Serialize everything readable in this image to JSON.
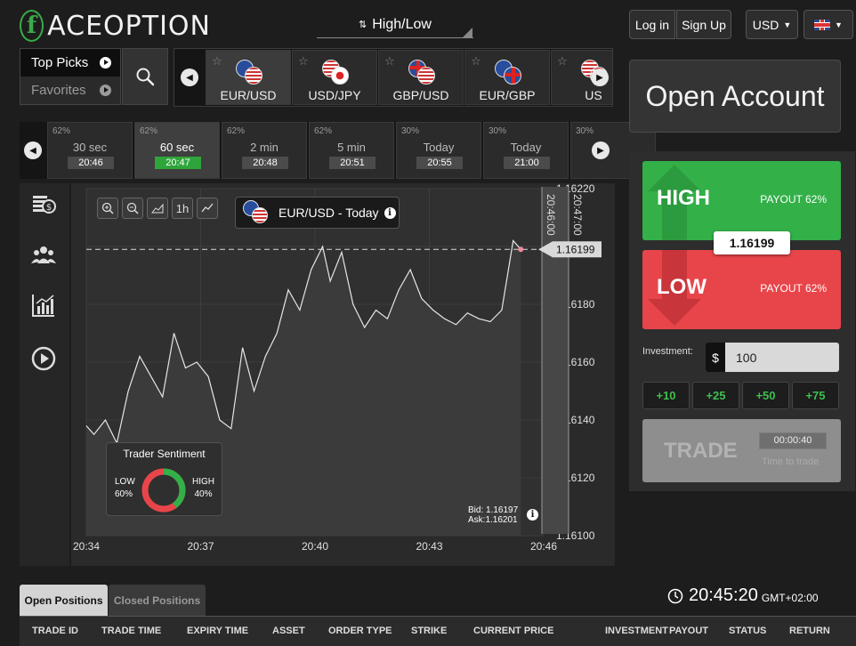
{
  "header": {
    "brand": "ACEOPTION",
    "brand_letter": "f",
    "mode": "High/Low",
    "login": "Log in",
    "signup": "Sign Up",
    "currency": "USD"
  },
  "picks": {
    "items": [
      {
        "label": "Top Picks",
        "active": true
      },
      {
        "label": "Favorites",
        "active": false
      }
    ]
  },
  "assets": [
    {
      "name": "EUR/USD",
      "flags": [
        "eu",
        "us"
      ],
      "selected": true
    },
    {
      "name": "USD/JPY",
      "flags": [
        "us",
        "jp"
      ],
      "selected": false
    },
    {
      "name": "GBP/USD",
      "flags": [
        "gb",
        "us"
      ],
      "selected": false
    },
    {
      "name": "EUR/GBP",
      "flags": [
        "eu",
        "gb"
      ],
      "selected": false
    },
    {
      "name": "US",
      "flags": [
        "us",
        "us"
      ],
      "selected": false
    }
  ],
  "expiries": [
    {
      "pct": "62%",
      "label": "30 sec",
      "time": "20:46",
      "selected": false
    },
    {
      "pct": "62%",
      "label": "60 sec",
      "time": "20:47",
      "selected": true
    },
    {
      "pct": "62%",
      "label": "2 min",
      "time": "20:48",
      "selected": false
    },
    {
      "pct": "62%",
      "label": "5 min",
      "time": "20:51",
      "selected": false
    },
    {
      "pct": "30%",
      "label": "Today",
      "time": "20:55",
      "selected": false
    },
    {
      "pct": "30%",
      "label": "Today",
      "time": "21:00",
      "selected": false
    },
    {
      "pct": "30%",
      "label": "",
      "time": "",
      "selected": false
    }
  ],
  "chart": {
    "asset_label": "EUR/USD - Today",
    "timeframe": "1h",
    "current_price": "1.16199",
    "bid": "Bid: 1.16197",
    "ask": "Ask:1.16201",
    "expiry_markers": [
      "20:46:00",
      "20:47:00"
    ],
    "sentiment": {
      "title": "Trader Sentiment",
      "low_label": "LOW",
      "low": "60%",
      "high_label": "HIGH",
      "high": "40%",
      "low_value": 60,
      "high_value": 40
    }
  },
  "chart_data": {
    "type": "line",
    "title": "",
    "xlabel": "",
    "ylabel": "",
    "x_ticks": [
      "20:34",
      "20:37",
      "20:40",
      "20:43",
      "20:46"
    ],
    "y_ticks": [
      "1.16220",
      "1.16200",
      "1.16180",
      "1.16160",
      "1.16140",
      "1.16120",
      "1.16100"
    ],
    "ylim": [
      1.161,
      1.1622
    ],
    "xlim_minutes": [
      0,
      12
    ],
    "grid": true,
    "current_price": 1.16199,
    "series": [
      {
        "x": [
          0,
          0.2,
          0.5,
          0.8,
          1.1,
          1.4,
          1.7,
          2.0,
          2.3,
          2.6,
          2.9,
          3.2,
          3.5,
          3.8,
          4.1,
          4.4,
          4.7,
          5.0,
          5.3,
          5.6,
          5.9,
          6.2,
          6.4,
          6.7,
          7.0,
          7.3,
          7.6,
          7.9,
          8.2,
          8.5,
          8.8,
          9.1,
          9.4,
          9.7,
          10.0,
          10.3,
          10.6,
          10.9,
          11.2,
          11.4
        ],
        "y": [
          1.16138,
          1.16135,
          1.1614,
          1.16132,
          1.1615,
          1.16162,
          1.16155,
          1.16148,
          1.1617,
          1.16158,
          1.1616,
          1.16155,
          1.1614,
          1.16137,
          1.16165,
          1.1615,
          1.16162,
          1.1617,
          1.16185,
          1.16178,
          1.16192,
          1.162,
          1.16188,
          1.16198,
          1.1618,
          1.16172,
          1.16178,
          1.16175,
          1.16185,
          1.16192,
          1.16182,
          1.16178,
          1.16175,
          1.16173,
          1.16177,
          1.16175,
          1.16174,
          1.16178,
          1.16202,
          1.16199
        ]
      }
    ]
  },
  "trade": {
    "open_account": "Open Account",
    "high_label": "HIGH",
    "low_label": "LOW",
    "payout_high": "PAYOUT 62%",
    "payout_low": "PAYOUT 62%",
    "price": "1.16199",
    "investment_label": "Investment:",
    "currency_symbol": "$",
    "investment_value": "100",
    "increments": [
      "+10",
      "+25",
      "+50",
      "+75"
    ],
    "trade_label": "TRADE",
    "countdown": "00:00:40",
    "time_to_trade": "Time to trade"
  },
  "positions": {
    "tabs": [
      "Open Positions",
      "Closed Positions"
    ],
    "clock": "20:45:20",
    "timezone": "GMT+02:00",
    "columns": [
      "TRADE ID",
      "TRADE TIME",
      "EXPIRY TIME",
      "ASSET",
      "ORDER TYPE",
      "STRIKE",
      "CURRENT PRICE",
      "INVESTMENT",
      "PAYOUT",
      "STATUS",
      "RETURN"
    ]
  },
  "colors": {
    "green": "#33b048",
    "red": "#e8454a",
    "accent_green": "#2ea53a"
  }
}
